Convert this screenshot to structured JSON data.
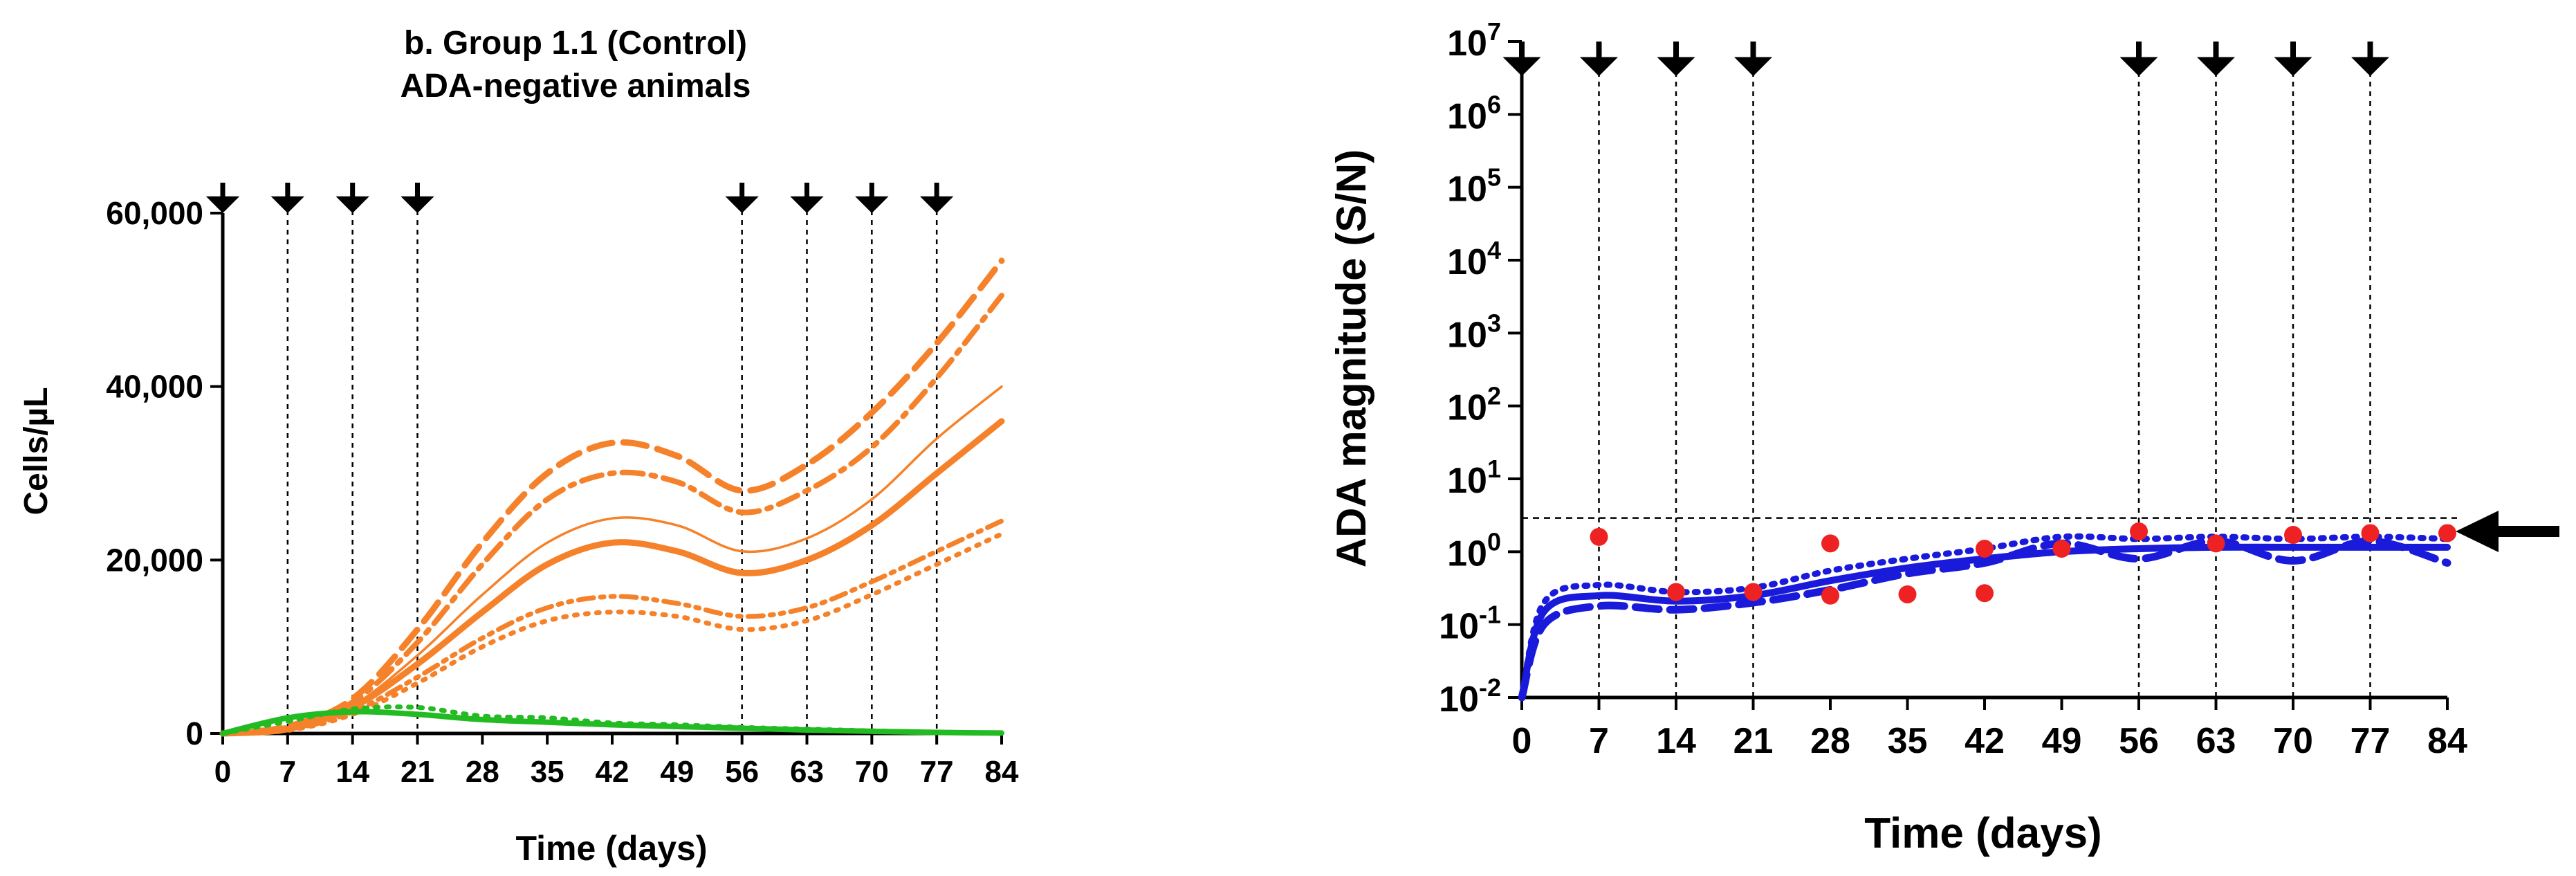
{
  "chart_data": [
    {
      "type": "line",
      "title": "b. Group 1.1 (Control)",
      "subtitle": "ADA-negative animals",
      "xlabel": "Time (days)",
      "ylabel": "Cells/µL",
      "xlim": [
        0,
        84
      ],
      "ylim": [
        0,
        60000
      ],
      "x_ticks": [
        "0",
        "7",
        "14",
        "21",
        "28",
        "35",
        "42",
        "49",
        "56",
        "63",
        "70",
        "77",
        "84"
      ],
      "y_ticks": [
        "0",
        "20,000",
        "40,000",
        "60,000"
      ],
      "grid": false,
      "dose_days": [
        0,
        7,
        14,
        21,
        56,
        63,
        70,
        77
      ],
      "series": [
        {
          "color": "#f5822a",
          "style": "solid-thick",
          "x": [
            0,
            7,
            14,
            21,
            28,
            35,
            42,
            49,
            56,
            63,
            70,
            77,
            84
          ],
          "y": [
            0,
            500,
            3000,
            8000,
            14000,
            19500,
            22000,
            21000,
            18500,
            20000,
            24000,
            30000,
            36000
          ]
        },
        {
          "color": "#f5822a",
          "style": "solid-thin",
          "x": [
            0,
            7,
            14,
            21,
            28,
            35,
            42,
            49,
            56,
            63,
            70,
            77,
            84
          ],
          "y": [
            0,
            500,
            3200,
            9000,
            16000,
            22000,
            24800,
            24000,
            21000,
            22500,
            27000,
            34000,
            40000
          ]
        },
        {
          "color": "#f5822a",
          "style": "dash",
          "x": [
            0,
            7,
            14,
            21,
            28,
            35,
            42,
            49,
            56,
            63,
            70,
            77,
            84
          ],
          "y": [
            0,
            800,
            4000,
            12000,
            22000,
            30000,
            33500,
            32000,
            28000,
            31000,
            37000,
            45000,
            54500
          ]
        },
        {
          "color": "#f5822a",
          "style": "dash-dot",
          "x": [
            0,
            7,
            14,
            21,
            28,
            35,
            42,
            49,
            56,
            63,
            70,
            77,
            84
          ],
          "y": [
            0,
            700,
            3600,
            10500,
            19500,
            27000,
            30000,
            29000,
            25500,
            28000,
            33000,
            41000,
            50500
          ]
        },
        {
          "color": "#f5822a",
          "style": "dash-dot-dot",
          "x": [
            0,
            7,
            14,
            21,
            28,
            35,
            42,
            49,
            56,
            63,
            70,
            77,
            84
          ],
          "y": [
            0,
            400,
            2500,
            6500,
            11000,
            14500,
            15800,
            15000,
            13500,
            14500,
            17500,
            21000,
            24500
          ]
        },
        {
          "color": "#f5822a",
          "style": "dot",
          "x": [
            0,
            7,
            14,
            21,
            28,
            35,
            42,
            49,
            56,
            63,
            70,
            77,
            84
          ],
          "y": [
            0,
            350,
            2200,
            5800,
            10000,
            13000,
            14000,
            13500,
            12000,
            13000,
            16000,
            19500,
            23000
          ]
        },
        {
          "color": "#22bb22",
          "style": "solid",
          "x": [
            0,
            7,
            14,
            21,
            28,
            35,
            42,
            49,
            56,
            63,
            70,
            77,
            84
          ],
          "y": [
            0,
            1800,
            2500,
            2200,
            1600,
            1300,
            1000,
            800,
            600,
            400,
            250,
            120,
            50
          ]
        },
        {
          "color": "#22bb22",
          "style": "dot",
          "x": [
            0,
            7,
            14,
            21,
            28,
            35,
            42,
            49,
            56,
            63,
            70,
            77,
            84
          ],
          "y": [
            0,
            1400,
            2800,
            3000,
            2000,
            1800,
            1200,
            1000,
            700,
            500,
            300,
            150,
            60
          ]
        }
      ]
    },
    {
      "type": "line",
      "xlabel": "Time (days)",
      "ylabel": "ADA magnitude (S/N)",
      "y_scale": "log",
      "xlim": [
        0,
        84
      ],
      "ylim": [
        0.01,
        10000000
      ],
      "x_ticks": [
        "0",
        "7",
        "14",
        "21",
        "28",
        "35",
        "42",
        "49",
        "56",
        "63",
        "70",
        "77",
        "84"
      ],
      "y_ticks": [
        {
          "base": "10",
          "exp": "-2"
        },
        {
          "base": "10",
          "exp": "-1"
        },
        {
          "base": "10",
          "exp": "0"
        },
        {
          "base": "10",
          "exp": "1"
        },
        {
          "base": "10",
          "exp": "2"
        },
        {
          "base": "10",
          "exp": "3"
        },
        {
          "base": "10",
          "exp": "4"
        },
        {
          "base": "10",
          "exp": "5"
        },
        {
          "base": "10",
          "exp": "6"
        },
        {
          "base": "10",
          "exp": "7"
        }
      ],
      "grid": false,
      "dose_days": [
        0,
        7,
        14,
        21,
        56,
        63,
        70,
        77
      ],
      "threshold": 2.9,
      "series": [
        {
          "color": "#1a1adb",
          "style": "solid",
          "x": [
            0,
            2,
            7,
            14,
            21,
            28,
            35,
            42,
            49,
            56,
            63,
            70,
            77,
            84
          ],
          "y": [
            0.01,
            0.15,
            0.25,
            0.21,
            0.25,
            0.4,
            0.6,
            0.8,
            1.0,
            1.1,
            1.15,
            1.15,
            1.15,
            1.15
          ]
        },
        {
          "color": "#1a1adb",
          "style": "dash",
          "x": [
            0,
            2,
            7,
            14,
            21,
            28,
            35,
            42,
            49,
            56,
            63,
            70,
            77,
            84
          ],
          "y": [
            0.01,
            0.1,
            0.18,
            0.16,
            0.2,
            0.3,
            0.5,
            0.7,
            1.3,
            0.8,
            1.4,
            0.75,
            1.4,
            0.7
          ]
        },
        {
          "color": "#1a1adb",
          "style": "dot",
          "x": [
            0,
            2,
            7,
            14,
            21,
            28,
            35,
            42,
            49,
            56,
            63,
            70,
            77,
            84
          ],
          "y": [
            0.01,
            0.2,
            0.35,
            0.28,
            0.32,
            0.55,
            0.8,
            1.1,
            1.6,
            1.5,
            1.6,
            1.5,
            1.6,
            1.5
          ]
        },
        {
          "color": "#ee2222",
          "style": "markers",
          "x": [
            7,
            14,
            21,
            28,
            28,
            35,
            42,
            42,
            49,
            56,
            63,
            70,
            77,
            84
          ],
          "y": [
            1.6,
            0.28,
            0.28,
            1.3,
            0.25,
            0.26,
            1.1,
            0.27,
            1.1,
            1.9,
            1.3,
            1.7,
            1.8,
            1.8
          ]
        }
      ]
    }
  ]
}
